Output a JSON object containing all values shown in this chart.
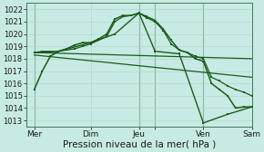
{
  "background_color": "#c8eae4",
  "grid_color": "#b0d8ce",
  "line_color": "#1a5c1a",
  "xlabel": "Pression niveau de la mer( hPa )",
  "ylim": [
    1012.5,
    1022.5
  ],
  "yticks": [
    1013,
    1014,
    1015,
    1016,
    1017,
    1018,
    1019,
    1020,
    1021,
    1022
  ],
  "xmin": 0,
  "xmax": 28,
  "xtick_positions": [
    1,
    8,
    14,
    16,
    22,
    28
  ],
  "xtick_labels": [
    "Mer",
    "Dim",
    "Jeu",
    "",
    "Ven",
    "Sam"
  ],
  "vlines": [
    1,
    14,
    16,
    22
  ],
  "line1_x": [
    1,
    2,
    3,
    4,
    5,
    6,
    7,
    8,
    9,
    10,
    11,
    12,
    13,
    14,
    15,
    16,
    17,
    18,
    19,
    20,
    21,
    22,
    23,
    24,
    25,
    26,
    27,
    28
  ],
  "line1_y": [
    1015.5,
    1017.0,
    1018.2,
    1018.6,
    1018.8,
    1019.1,
    1019.3,
    1019.3,
    1019.6,
    1020.0,
    1021.2,
    1021.5,
    1021.5,
    1021.7,
    1021.4,
    1021.1,
    1020.4,
    1019.5,
    1018.7,
    1018.5,
    1018.0,
    1017.8,
    1016.0,
    1015.5,
    1015.0,
    1014.0,
    1014.1,
    1014.1
  ],
  "line2_x": [
    1,
    2,
    3,
    4,
    5,
    6,
    7,
    8,
    9,
    10,
    11,
    12,
    13,
    14,
    15,
    16,
    17,
    18,
    19,
    20,
    21,
    22,
    23,
    24,
    25,
    26,
    27,
    28
  ],
  "line2_y": [
    1018.5,
    1018.6,
    1018.6,
    1018.6,
    1018.7,
    1018.8,
    1019.0,
    1019.2,
    1019.5,
    1019.8,
    1021.0,
    1021.4,
    1021.5,
    1021.7,
    1021.3,
    1021.0,
    1020.3,
    1019.2,
    1018.7,
    1018.5,
    1018.2,
    1018.0,
    1016.5,
    1016.2,
    1015.8,
    1015.5,
    1015.3,
    1015.0
  ],
  "line3_x": [
    1,
    4,
    8,
    11,
    14,
    16,
    19,
    22,
    25,
    28
  ],
  "line3_y": [
    1018.5,
    1018.6,
    1019.3,
    1020.0,
    1021.7,
    1018.6,
    1018.4,
    1012.8,
    1013.5,
    1014.1
  ],
  "line4_x": [
    1,
    28
  ],
  "line4_y": [
    1018.5,
    1018.0
  ],
  "line5_x": [
    1,
    28
  ],
  "line5_y": [
    1018.3,
    1016.5
  ]
}
